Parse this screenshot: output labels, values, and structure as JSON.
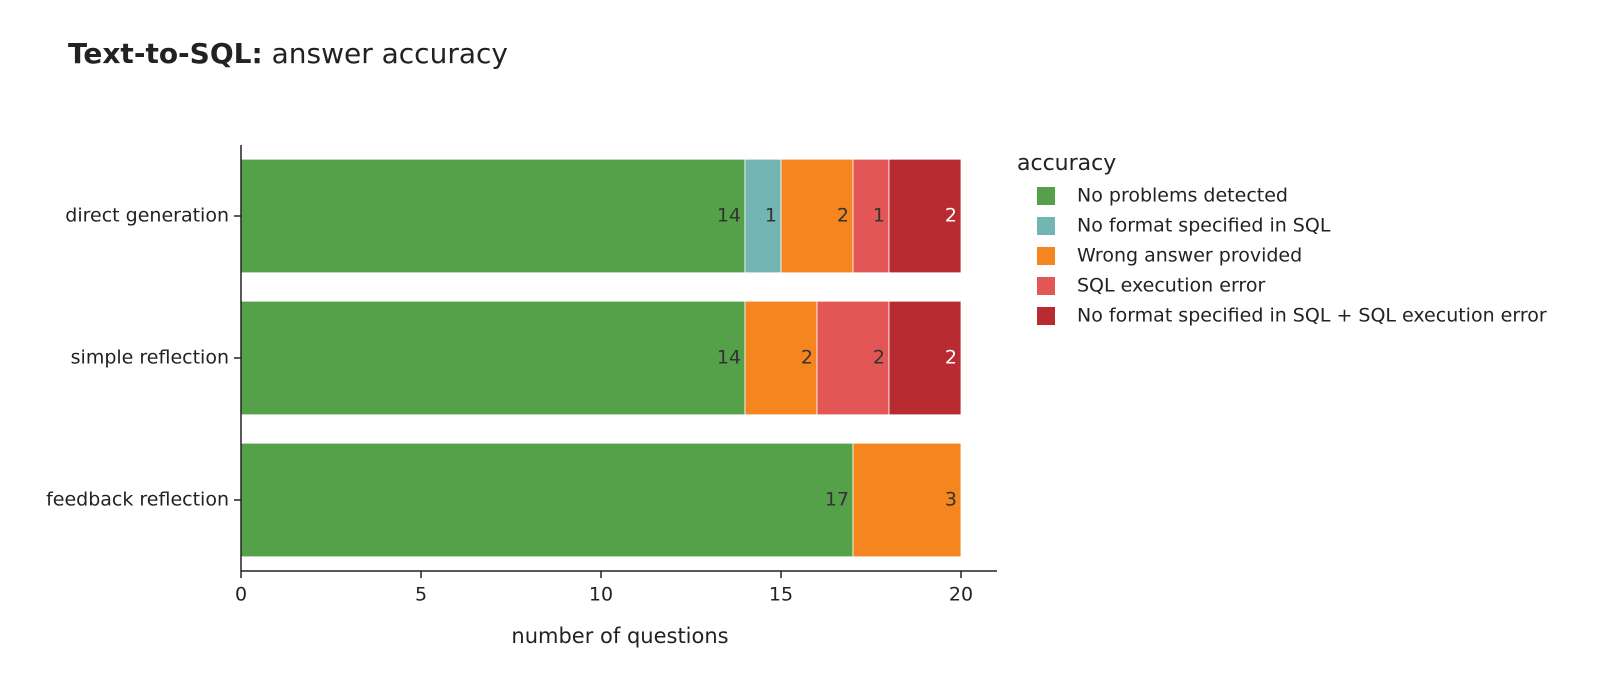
{
  "chart_data": {
    "type": "bar",
    "orientation": "horizontal",
    "stacked": true,
    "title": [
      "Text-to-SQL:",
      "answer accuracy"
    ],
    "xlabel": "number of questions",
    "legend_title": "accuracy",
    "categories": [
      "direct generation",
      "simple reflection",
      "feedback reflection"
    ],
    "series": [
      {
        "name": "No problems detected",
        "color": "#55a14a",
        "label_color": "#333333",
        "values": [
          14,
          14,
          17
        ]
      },
      {
        "name": "No format specified in SQL",
        "color": "#72b5b3",
        "label_color": "#333333",
        "values": [
          1,
          null,
          null
        ]
      },
      {
        "name": "Wrong answer provided",
        "color": "#f5861f",
        "label_color": "#333333",
        "values": [
          2,
          2,
          3
        ]
      },
      {
        "name": "SQL execution error",
        "color": "#e35656",
        "label_color": "#333333",
        "values": [
          1,
          2,
          null
        ]
      },
      {
        "name": "No format specified in SQL + SQL execution error",
        "color": "#b82b31",
        "label_color": "#ffffff",
        "values": [
          2,
          2,
          null
        ]
      }
    ],
    "xlim": [
      0,
      21
    ],
    "xticks": [
      0,
      5,
      10,
      15,
      20
    ],
    "grid": false
  }
}
